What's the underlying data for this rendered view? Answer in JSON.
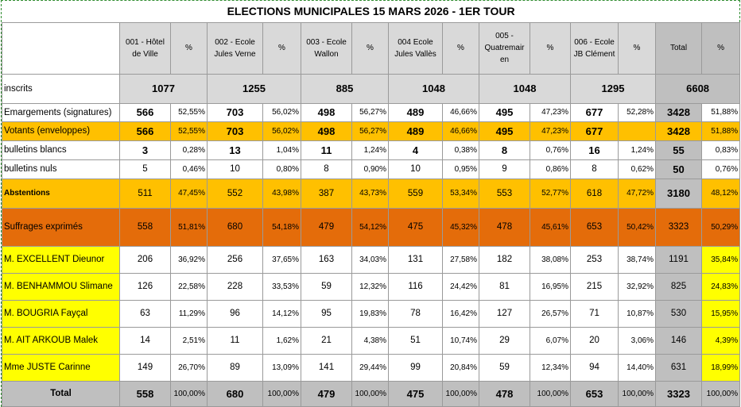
{
  "title": "ELECTIONS MUNICIPALES 15 MARS 2026 - 1ER TOUR",
  "header": [
    "001 - Hôtel de Ville",
    "%",
    "002 - Ecole Jules Verne",
    "%",
    "003 - Ecole Wallon",
    "%",
    "004 Ecole Jules Vallès",
    "%",
    "005 - Quatremair en",
    "%",
    "006 - Ecole JB Clément",
    "%",
    "Total",
    "%"
  ],
  "inscrits": {
    "label": "inscrits",
    "values": [
      "1077",
      "1255",
      "885",
      "1048",
      "1048",
      "1295",
      "6608"
    ]
  },
  "rows": [
    {
      "label": "Emargements (signatures)",
      "cells": [
        "566",
        "52,55%",
        "703",
        "56,02%",
        "498",
        "56,27%",
        "489",
        "46,66%",
        "495",
        "47,23%",
        "677",
        "52,28%",
        "3428",
        "51,88%"
      ]
    },
    {
      "label": "Votants (enveloppes)",
      "cells": [
        "566",
        "52,55%",
        "703",
        "56,02%",
        "498",
        "56,27%",
        "489",
        "46,66%",
        "495",
        "47,23%",
        "677",
        null,
        "3428",
        "51,88%"
      ]
    },
    {
      "label": "bulletins blancs",
      "cells": [
        "3",
        "0,28%",
        "13",
        "1,04%",
        "11",
        "1,24%",
        "4",
        "0,38%",
        "8",
        "0,76%",
        "16",
        "1,24%",
        "55",
        "0,83%"
      ]
    },
    {
      "label": "bulletins nuls",
      "cells": [
        "5",
        "0,46%",
        "10",
        "0,80%",
        "8",
        "0,90%",
        "10",
        "0,95%",
        "9",
        "0,86%",
        "8",
        "0,62%",
        "50",
        "0,76%"
      ]
    },
    {
      "label": "Abstentions",
      "cells": [
        "511",
        "47,45%",
        "552",
        "43,98%",
        "387",
        "43,73%",
        "559",
        "53,34%",
        "553",
        "52,77%",
        "618",
        "47,72%",
        "3180",
        "48,12%"
      ]
    },
    {
      "label": "Suffrages exprimés",
      "cells": [
        "558",
        "51,81%",
        "680",
        "54,18%",
        "479",
        "54,12%",
        "475",
        "45,32%",
        "478",
        "45,61%",
        "653",
        "50,42%",
        "3323",
        "50,29%"
      ]
    },
    {
      "label": "M. EXCELLENT Dieunor",
      "cells": [
        "206",
        "36,92%",
        "256",
        "37,65%",
        "163",
        "34,03%",
        "131",
        "27,58%",
        "182",
        "38,08%",
        "253",
        "38,74%",
        "1191",
        "35,84%"
      ]
    },
    {
      "label": "M. BENHAMMOU Slimane",
      "cells": [
        "126",
        "22,58%",
        "228",
        "33,53%",
        "59",
        "12,32%",
        "116",
        "24,42%",
        "81",
        "16,95%",
        "215",
        "32,92%",
        "825",
        "24,83%"
      ]
    },
    {
      "label": "M. BOUGRIA Fayçal",
      "cells": [
        "63",
        "11,29%",
        "96",
        "14,12%",
        "95",
        "19,83%",
        "78",
        "16,42%",
        "127",
        "26,57%",
        "71",
        "10,87%",
        "530",
        "15,95%"
      ]
    },
    {
      "label": "M. AIT ARKOUB Malek",
      "cells": [
        "14",
        "2,51%",
        "11",
        "1,62%",
        "21",
        "4,38%",
        "51",
        "10,74%",
        "29",
        "6,07%",
        "20",
        "3,06%",
        "146",
        "4,39%"
      ]
    },
    {
      "label": "Mme JUSTE Carinne",
      "cells": [
        "149",
        "26,70%",
        "89",
        "13,09%",
        "141",
        "29,44%",
        "99",
        "20,84%",
        "59",
        "12,34%",
        "94",
        "14,40%",
        "631",
        "18,99%"
      ]
    },
    {
      "label": "Total",
      "cells": [
        "558",
        "100,00%",
        "680",
        "100,00%",
        "479",
        "100,00%",
        "475",
        "100,00%",
        "478",
        "100,00%",
        "653",
        "100,00%",
        "3323",
        "100,00%"
      ]
    }
  ]
}
